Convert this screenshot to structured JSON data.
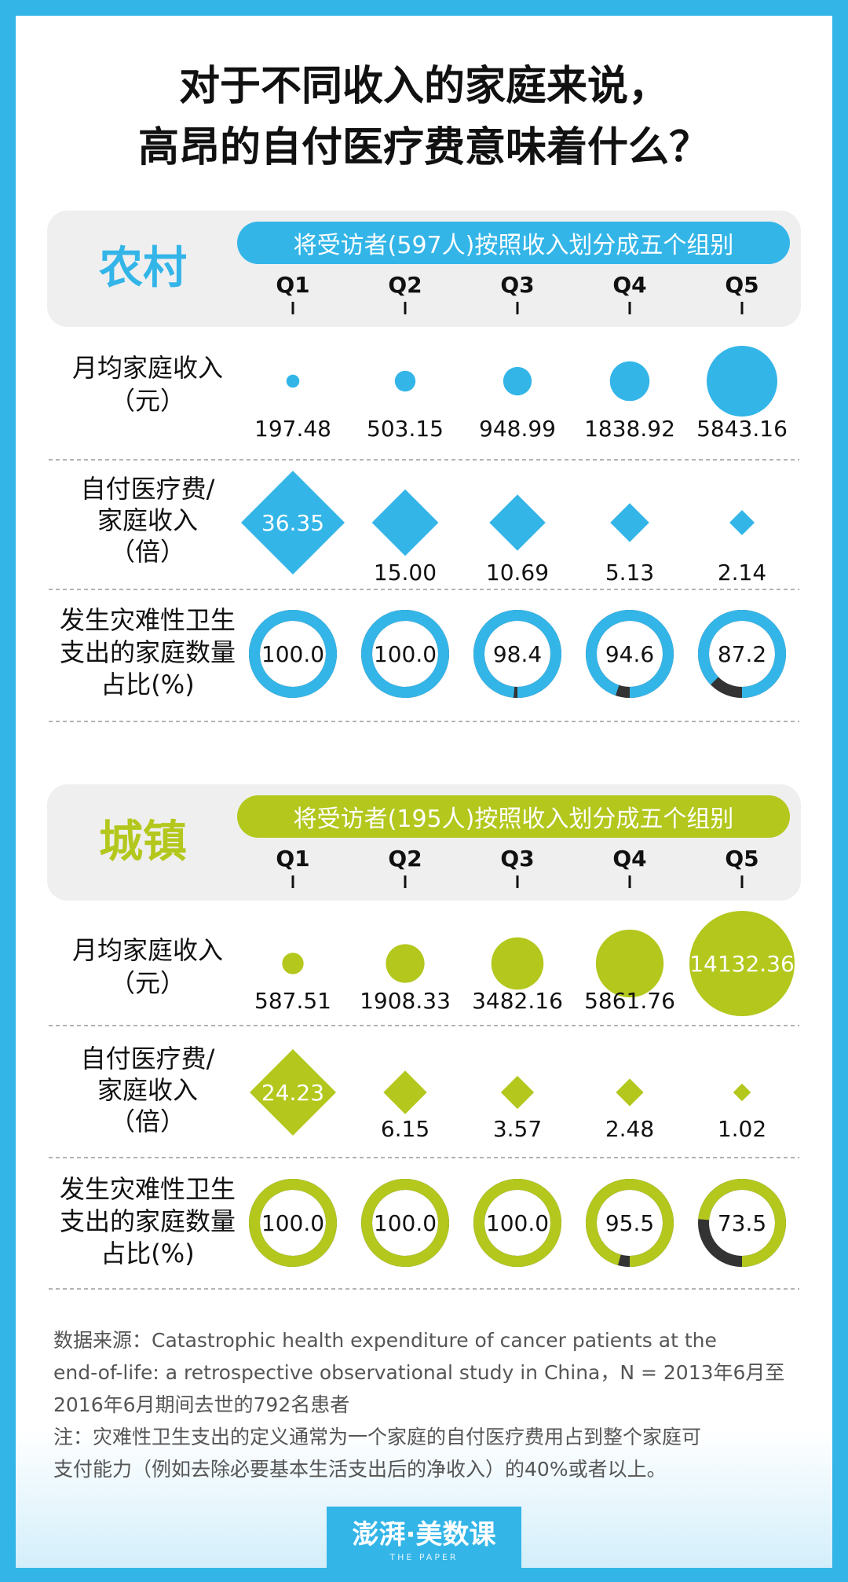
{
  "header": {
    "title_line1": "对于不同收入的家庭来说，",
    "title_line2": "高昂的自付医疗费意味着什么？"
  },
  "colors": {
    "rural": "#33b5e8",
    "urban": "#b3c71d",
    "ring_dark": "#333333",
    "section_bg": "#efefef"
  },
  "row_labels": {
    "income": [
      "月均家庭收入",
      "（元）"
    ],
    "ratio": [
      "自付医疗费/",
      "家庭收入",
      "（倍）"
    ],
    "share": [
      "发生灾难性卫生",
      "支出的家庭数量",
      "占比(%)"
    ]
  },
  "chart_data": [
    {
      "type": "bubble",
      "group": "农村",
      "banner": "将受访者(597人)按照收入划分成五个组别",
      "categories": [
        "Q1",
        "Q2",
        "Q3",
        "Q4",
        "Q5"
      ],
      "series": [
        {
          "name": "月均家庭收入（元）",
          "values": [
            197.48,
            503.15,
            948.99,
            1838.92,
            5843.16
          ]
        },
        {
          "name": "自付医疗费/家庭收入（倍）",
          "values": [
            36.35,
            15.0,
            10.69,
            5.13,
            2.14
          ]
        },
        {
          "name": "发生灾难性卫生支出的家庭数量占比(%)",
          "values": [
            100.0,
            100.0,
            98.4,
            94.6,
            87.2
          ]
        }
      ],
      "labels": {
        "income": [
          "197.48",
          "503.15",
          "948.99",
          "1838.92",
          "5843.16"
        ],
        "ratio": [
          "36.35",
          "15.00",
          "10.69",
          "5.13",
          "2.14"
        ],
        "share": [
          "100.0",
          "100.0",
          "98.4",
          "94.6",
          "87.2"
        ]
      }
    },
    {
      "type": "bubble",
      "group": "城镇",
      "banner": "将受访者(195人)按照收入划分成五个组别",
      "categories": [
        "Q1",
        "Q2",
        "Q3",
        "Q4",
        "Q5"
      ],
      "series": [
        {
          "name": "月均家庭收入（元）",
          "values": [
            587.51,
            1908.33,
            3482.16,
            5861.76,
            14132.36
          ]
        },
        {
          "name": "自付医疗费/家庭收入（倍）",
          "values": [
            24.23,
            6.15,
            3.57,
            2.48,
            1.02
          ]
        },
        {
          "name": "发生灾难性卫生支出的家庭数量占比(%)",
          "values": [
            100.0,
            100.0,
            100.0,
            95.5,
            73.5
          ]
        }
      ],
      "labels": {
        "income": [
          "587.51",
          "1908.33",
          "3482.16",
          "5861.76",
          "14132.36"
        ],
        "ratio": [
          "24.23",
          "6.15",
          "3.57",
          "2.48",
          "1.02"
        ],
        "share": [
          "100.0",
          "100.0",
          "100.0",
          "95.5",
          "73.5"
        ]
      }
    }
  ],
  "footer": {
    "source_line1": "数据来源：Catastrophic health expenditure of cancer patients at the",
    "source_line2": "end-of-life: a retrospective observational study in China，N = 2013年6月至",
    "source_line3": "2016年6月期间去世的792名患者",
    "note_line1": "注：灾难性卫生支出的定义通常为一个家庭的自付医疗费用占到整个家庭可",
    "note_line2": "支付能力（例如去除必要基本生活支出后的净收入）的40%或者以上。"
  },
  "logo": {
    "text": "澎湃·美数课",
    "sub": "THE PAPER"
  }
}
